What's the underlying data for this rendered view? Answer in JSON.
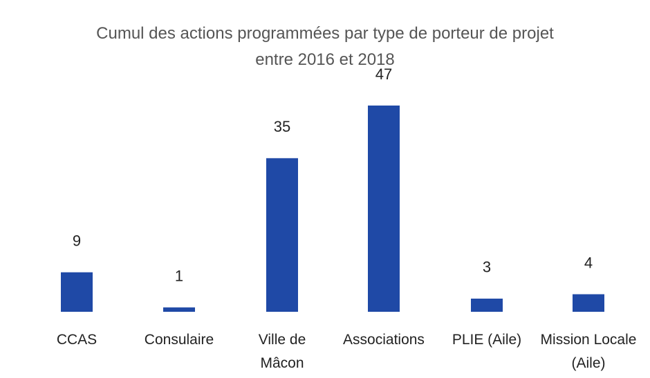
{
  "chart_data": {
    "type": "bar",
    "title": "Cumul des actions programmées par type de porteur de projet entre 2016 et 2018",
    "categories": [
      "CCAS",
      "Consulaire",
      "Ville de Mâcon",
      "Associations",
      "PLIE (Aile)",
      "Mission Locale (Aile)"
    ],
    "values": [
      9,
      1,
      35,
      47,
      3,
      4
    ],
    "color": "#1f49a6"
  }
}
